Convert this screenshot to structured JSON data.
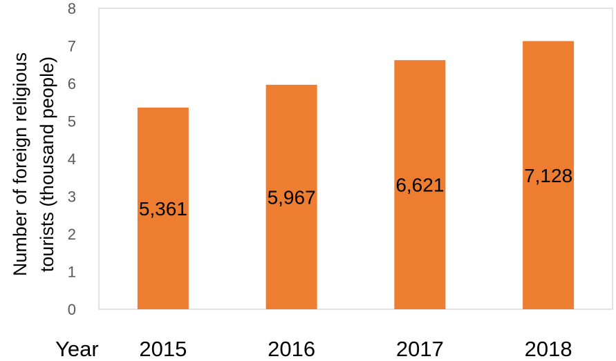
{
  "chart_data": {
    "type": "bar",
    "categories": [
      "2015",
      "2016",
      "2017",
      "2018"
    ],
    "values": [
      5.361,
      5.967,
      6.621,
      7.128
    ],
    "data_labels": [
      "5,361",
      "5,967",
      "6,621",
      "7,128"
    ],
    "xlabel": "Year",
    "ylabel_lines": [
      "Number of foreign religious",
      "tourists (thousand people)"
    ],
    "ylim": [
      0,
      8
    ],
    "yticks": [
      "0",
      "1",
      "2",
      "3",
      "4",
      "5",
      "6",
      "7",
      "8"
    ],
    "bar_color": "#ED7D31",
    "plot_border_color": "#D9D9D9",
    "grid": false,
    "legend": "none"
  }
}
